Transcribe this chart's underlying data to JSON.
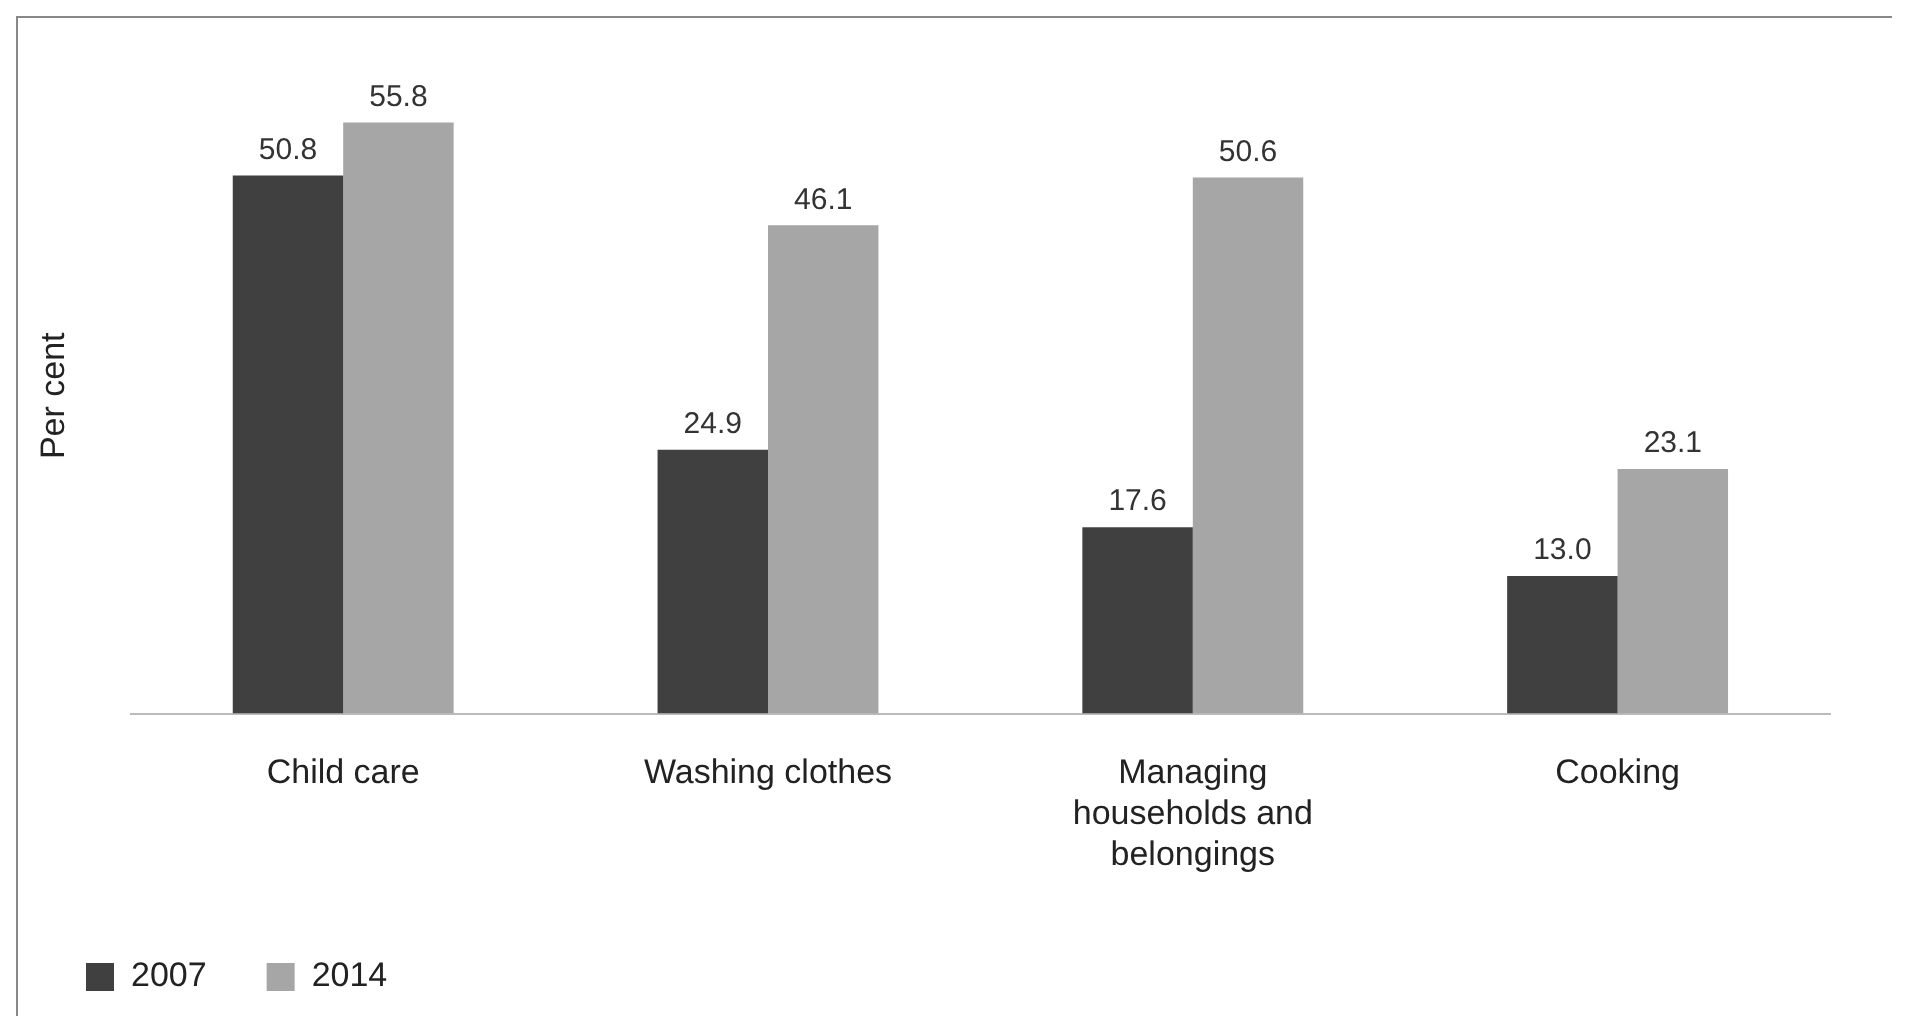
{
  "chart_data": {
    "type": "bar",
    "ylabel": "Per cent",
    "categories": [
      "Child care",
      "Washing clothes",
      "Managing households and belongings",
      "Cooking"
    ],
    "series": [
      {
        "name": "2007",
        "color": "#404040",
        "values": [
          50.8,
          24.9,
          17.6,
          13.0
        ],
        "value_labels": [
          "50.8",
          "24.9",
          "17.6",
          "13.0"
        ]
      },
      {
        "name": "2014",
        "color": "#a6a6a6",
        "values": [
          55.8,
          46.1,
          50.6,
          23.1
        ],
        "value_labels": [
          "55.8",
          "46.1",
          "50.6",
          "23.1"
        ]
      }
    ],
    "grid": false,
    "legend": "bottom left"
  }
}
